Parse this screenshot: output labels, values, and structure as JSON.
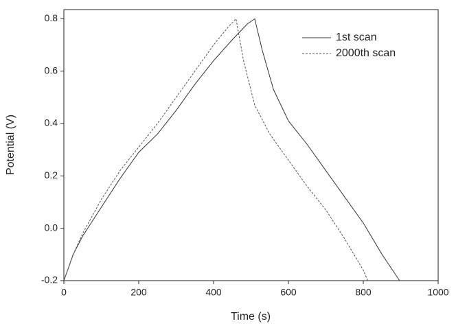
{
  "chart_data": {
    "type": "line",
    "x_label": "Time (s)",
    "y_label": "Potential (V)",
    "xlim": [
      0,
      1000
    ],
    "ylim": [
      -0.2,
      0.835
    ],
    "xticks": [
      0,
      200,
      400,
      600,
      800,
      1000
    ],
    "yticks": [
      -0.2,
      {
        "value": 0,
        "label": "0.0"
      },
      0.2,
      0.4,
      0.6,
      0.8
    ],
    "legend": "upper-right",
    "series": [
      {
        "name": "1st scan",
        "color": "#333333",
        "line_style": "solid",
        "x": [
          0,
          25,
          50,
          100,
          150,
          200,
          250,
          300,
          350,
          400,
          450,
          490,
          510,
          530,
          560,
          600,
          650,
          700,
          750,
          800,
          850,
          897
        ],
        "values": [
          -0.2,
          -0.1,
          -0.03,
          0.08,
          0.19,
          0.29,
          0.36,
          0.45,
          0.55,
          0.64,
          0.72,
          0.78,
          0.8,
          0.68,
          0.53,
          0.41,
          0.32,
          0.22,
          0.12,
          0.02,
          -0.1,
          -0.2
        ]
      },
      {
        "name": "2000th scan",
        "color": "#555555",
        "line_style": "dashed",
        "x": [
          0,
          25,
          50,
          100,
          150,
          200,
          250,
          300,
          350,
          400,
          440,
          460,
          480,
          510,
          550,
          600,
          650,
          700,
          750,
          800,
          812
        ],
        "values": [
          -0.2,
          -0.1,
          -0.02,
          0.11,
          0.22,
          0.31,
          0.4,
          0.5,
          0.6,
          0.7,
          0.77,
          0.8,
          0.64,
          0.47,
          0.36,
          0.26,
          0.16,
          0.07,
          -0.04,
          -0.16,
          -0.2
        ]
      }
    ]
  }
}
